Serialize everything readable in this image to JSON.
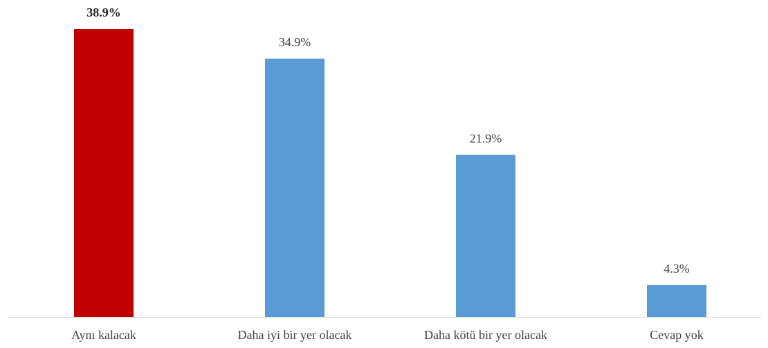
{
  "chart_data": {
    "type": "bar",
    "categories": [
      "Aynı kalacak",
      "Daha iyi bir yer olacak",
      "Daha kötü bir yer olacak",
      "Cevap yok"
    ],
    "values": [
      38.9,
      34.9,
      21.9,
      4.3
    ],
    "value_labels": [
      "38.9%",
      "34.9%",
      "21.9%",
      "4.3%"
    ],
    "colors": [
      "#c00000",
      "#5b9bd5",
      "#5b9bd5",
      "#5b9bd5"
    ],
    "highlight_index": 0
  }
}
